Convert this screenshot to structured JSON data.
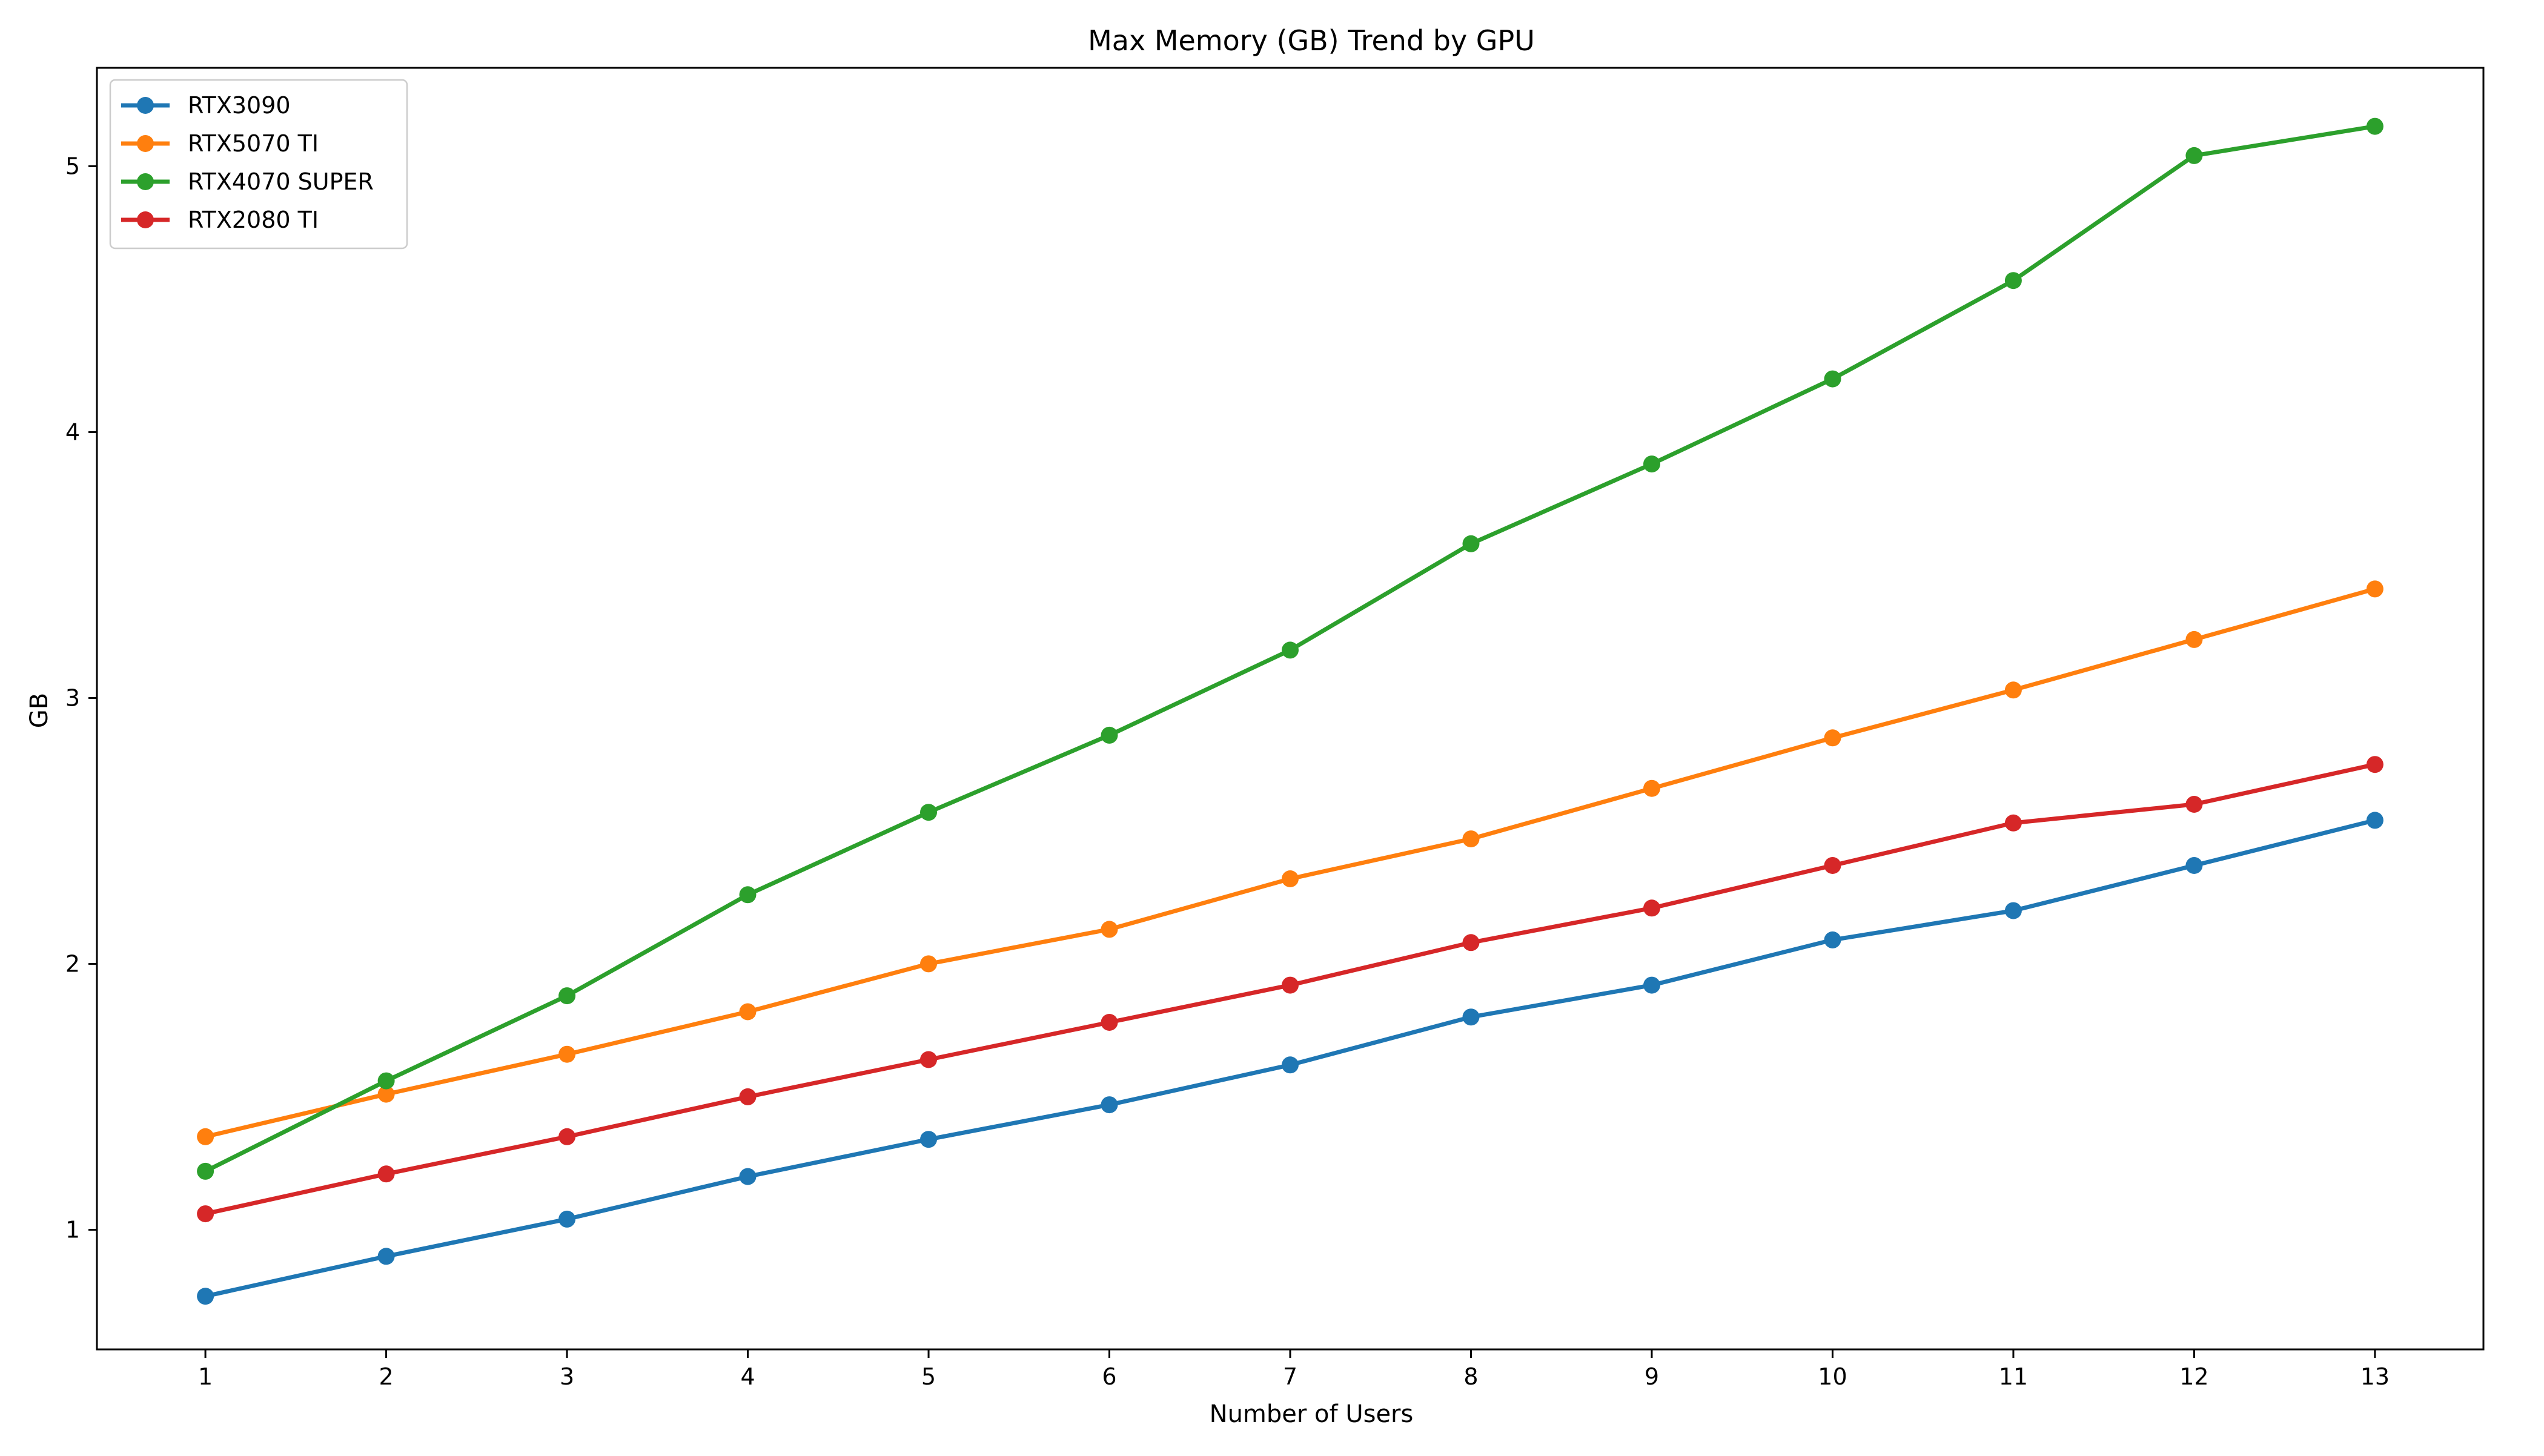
{
  "chart_data": {
    "type": "line",
    "title": "Max Memory (GB) Trend by GPU",
    "xlabel": "Number of Users",
    "ylabel": "GB",
    "x": [
      1,
      2,
      3,
      4,
      5,
      6,
      7,
      8,
      9,
      10,
      11,
      12,
      13
    ],
    "xlim": [
      0.4,
      13.6
    ],
    "ylim": [
      0.55,
      5.37
    ],
    "yticks": [
      1,
      2,
      3,
      4,
      5
    ],
    "grid": false,
    "legend_position": "top-left",
    "series": [
      {
        "name": "RTX3090",
        "color": "#1f77b4",
        "values": [
          0.75,
          0.9,
          1.04,
          1.2,
          1.34,
          1.47,
          1.62,
          1.8,
          1.92,
          2.09,
          2.2,
          2.37,
          2.54
        ]
      },
      {
        "name": "RTX5070 TI",
        "color": "#ff7f0e",
        "values": [
          1.35,
          1.51,
          1.66,
          1.82,
          2.0,
          2.13,
          2.32,
          2.47,
          2.66,
          2.85,
          3.03,
          3.22,
          3.41
        ]
      },
      {
        "name": "RTX4070 SUPER",
        "color": "#2ca02c",
        "values": [
          1.22,
          1.56,
          1.88,
          2.26,
          2.57,
          2.86,
          3.18,
          3.58,
          3.88,
          4.2,
          4.57,
          5.04,
          5.15
        ]
      },
      {
        "name": "RTX2080 TI",
        "color": "#d62728",
        "values": [
          1.06,
          1.21,
          1.35,
          1.5,
          1.64,
          1.78,
          1.92,
          2.08,
          2.21,
          2.37,
          2.53,
          2.6,
          2.75
        ]
      }
    ]
  }
}
